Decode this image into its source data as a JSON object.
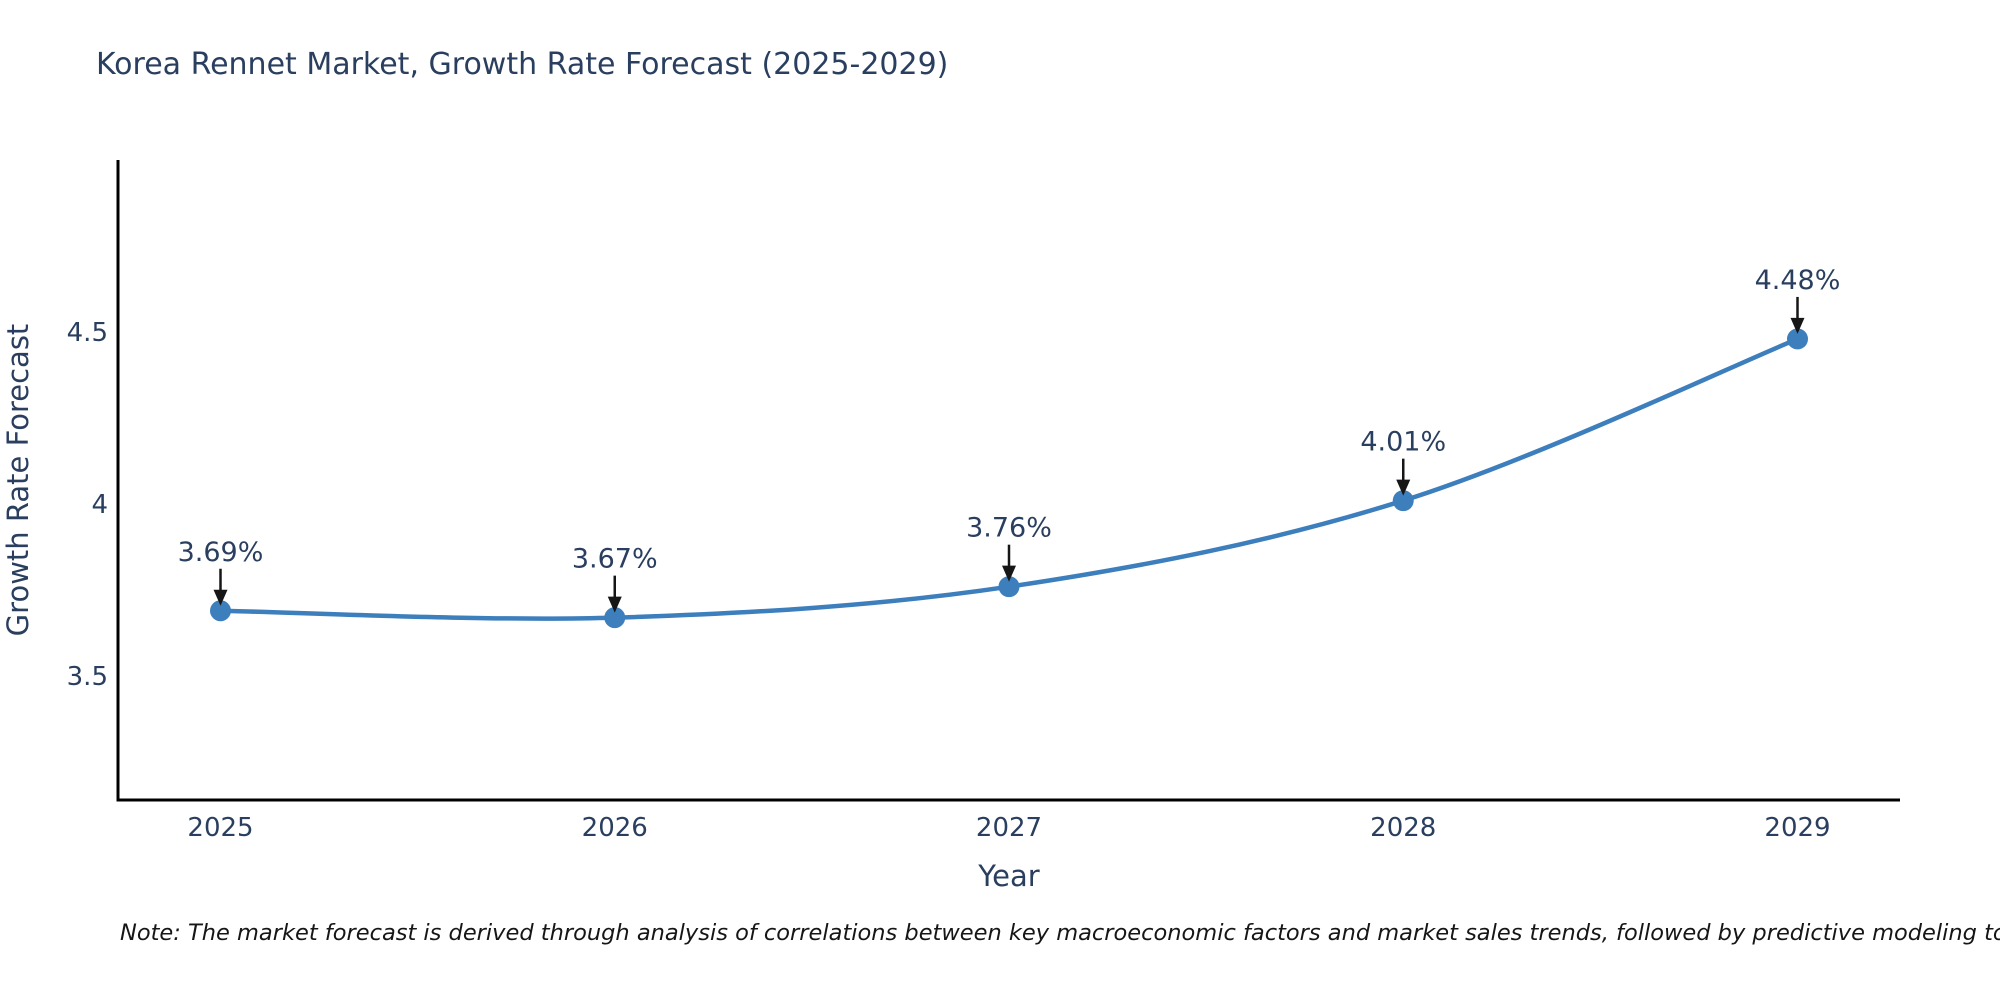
{
  "page": {
    "title": "Korea Rennet Market, Growth Rate Forecast (2025-2029)",
    "note": "Note: The market forecast is derived through analysis of correlations between key macroeconomic factors and market sales trends, followed by predictive modeling to project future sales"
  },
  "chart_data": {
    "type": "line",
    "title": "Korea Rennet Market, Growth Rate Forecast (2025-2029)",
    "x": [
      2025,
      2026,
      2027,
      2028,
      2029
    ],
    "xtick_labels": [
      "2025",
      "2026",
      "2027",
      "2028",
      "2029"
    ],
    "series": [
      {
        "name": "Growth Rate Forecast",
        "values": [
          3.69,
          3.67,
          3.76,
          4.01,
          4.48
        ]
      }
    ],
    "point_labels": [
      "3.69%",
      "3.67%",
      "3.76%",
      "4.01%",
      "4.48%"
    ],
    "xlabel": "Year",
    "ylabel": "Growth Rate Forecast",
    "yticks": [
      3.5,
      4,
      4.5
    ],
    "ytick_labels": [
      "3.5",
      "4",
      "4.5"
    ],
    "xlim": [
      2024.74,
      2029.26
    ],
    "ylim": [
      3.14,
      5.0
    ],
    "grid": false,
    "legend": "none",
    "line_shape": "spline",
    "marker": "circle",
    "annotation_arrows": "black-down-arrow-to-point",
    "colors": {
      "line": "#3d7ebd",
      "marker": "#3d7ebd",
      "arrow": "#161616",
      "text": "#2a3f5f",
      "note_text": "#161616",
      "axis": "#000000",
      "background": "#ffffff"
    }
  }
}
